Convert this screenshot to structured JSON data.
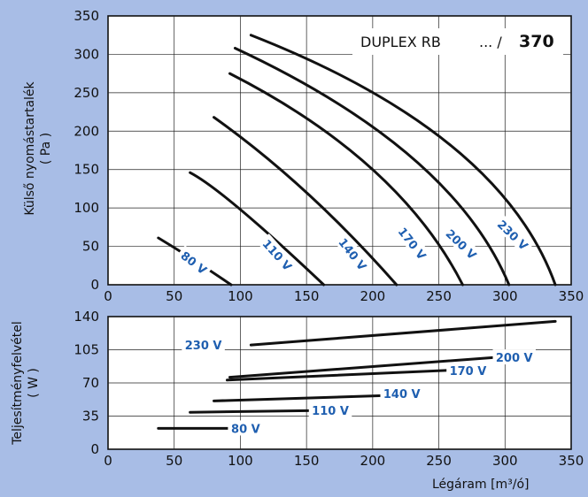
{
  "colors": {
    "background": "#a8bde6",
    "plot_bg": "#ffffff",
    "curve": "#111111",
    "label": "#1f5fb0"
  },
  "title": {
    "model": "DUPLEX RB",
    "separator": "... /",
    "size": "370"
  },
  "chart_data": [
    {
      "type": "line",
      "ylabel": "Külső nyomástartalék",
      "yunit": "( Pa )",
      "xlim": [
        0,
        350
      ],
      "ylim": [
        0,
        350
      ],
      "xticks": [
        "0",
        "50",
        "100",
        "150",
        "200",
        "250",
        "300",
        "350"
      ],
      "yticks": [
        "0",
        "50",
        "100",
        "150",
        "200",
        "250",
        "300",
        "350"
      ],
      "grid": true,
      "series": [
        {
          "name": "80 V",
          "x": [
            38,
            65,
            93
          ],
          "y": [
            61,
            32,
            0
          ]
        },
        {
          "name": "110 V",
          "x": [
            62,
            100,
            163
          ],
          "y": [
            146,
            98,
            0
          ]
        },
        {
          "name": "140 V",
          "x": [
            80,
            150,
            218
          ],
          "y": [
            218,
            120,
            0
          ]
        },
        {
          "name": "170 V",
          "x": [
            92,
            200,
            268
          ],
          "y": [
            275,
            150,
            0
          ]
        },
        {
          "name": "200 V",
          "x": [
            96,
            230,
            303
          ],
          "y": [
            308,
            165,
            0
          ]
        },
        {
          "name": "230 V",
          "x": [
            108,
            260,
            338
          ],
          "y": [
            325,
            180,
            0
          ]
        }
      ]
    },
    {
      "type": "line",
      "xlabel": "Légáram",
      "xunit": "[m³/ó]",
      "ylabel": "Teljesítményfelvétel",
      "yunit": "( W )",
      "xlim": [
        0,
        350
      ],
      "ylim": [
        0,
        140
      ],
      "xticks": [
        "0",
        "50",
        "100",
        "150",
        "200",
        "250",
        "300",
        "350"
      ],
      "yticks": [
        "0",
        "35",
        "70",
        "105",
        "140"
      ],
      "grid": true,
      "series": [
        {
          "name": "80 V",
          "x": [
            38,
            93
          ],
          "y": [
            22,
            22
          ]
        },
        {
          "name": "110 V",
          "x": [
            62,
            163
          ],
          "y": [
            39,
            41
          ]
        },
        {
          "name": "140 V",
          "x": [
            80,
            218
          ],
          "y": [
            51,
            57
          ]
        },
        {
          "name": "170 V",
          "x": [
            90,
            268
          ],
          "y": [
            73,
            84
          ]
        },
        {
          "name": "200 V",
          "x": [
            92,
            303
          ],
          "y": [
            76,
            98
          ]
        },
        {
          "name": "230 V",
          "x": [
            108,
            338
          ],
          "y": [
            110,
            135
          ]
        }
      ]
    }
  ]
}
